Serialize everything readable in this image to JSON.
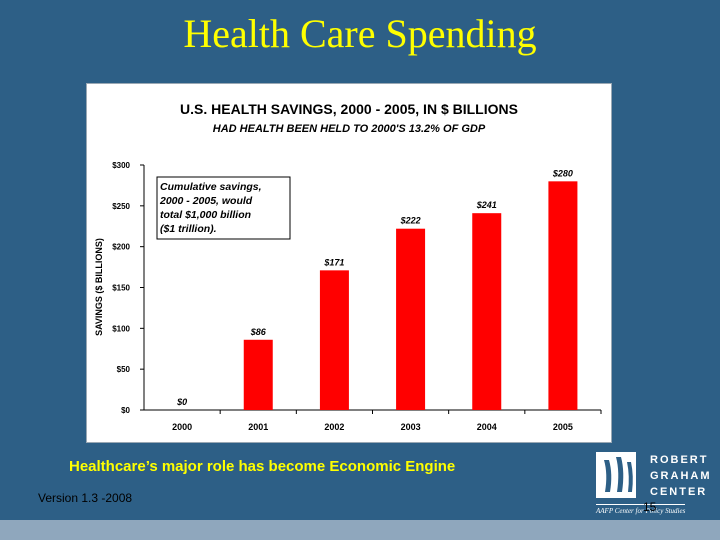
{
  "slide": {
    "title": "Health Care Spending",
    "caption": "Healthcare’s major role has become Economic Engine",
    "version": "Version 1.3 -2008",
    "page_number": "15"
  },
  "logo": {
    "lines": [
      "ROBERT",
      "GRAHAM",
      "CENTER"
    ],
    "subtitle": "AAFP Center for Policy Studies"
  },
  "chart_data": {
    "type": "bar",
    "title": "U.S. HEALTH SAVINGS, 2000 - 2005, IN $ BILLIONS",
    "subtitle": "HAD HEALTH BEEN HELD TO 2000'S 13.2% OF GDP",
    "ylabel": "SAVINGS ($ BILLIONS)",
    "xlabel": "",
    "categories": [
      "2000",
      "2001",
      "2002",
      "2003",
      "2004",
      "2005"
    ],
    "values": [
      0,
      86,
      171,
      222,
      241,
      280
    ],
    "data_labels": [
      "$0",
      "$86",
      "$171",
      "$222",
      "$241",
      "$280"
    ],
    "ylim": [
      0,
      300
    ],
    "yticks": [
      0,
      50,
      100,
      150,
      200,
      250,
      300
    ],
    "ytick_labels": [
      "$0",
      "$50",
      "$100",
      "$150",
      "$200",
      "$250",
      "$300"
    ],
    "annotation": [
      "Cumulative savings,",
      "2000 - 2005, would",
      "total $1,000 billion",
      "($1 trillion)."
    ],
    "bar_color": "#ff0000",
    "grid": false,
    "legend": "none"
  }
}
